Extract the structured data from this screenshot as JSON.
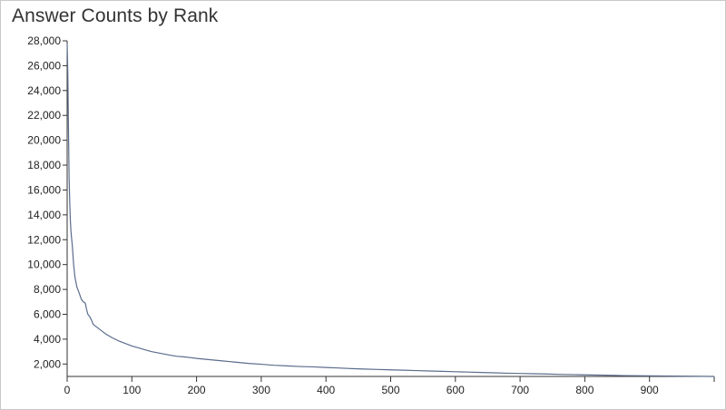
{
  "chart_data": {
    "type": "line",
    "title": "Answer Counts by Rank",
    "xlabel": "",
    "ylabel": "",
    "xlim": [
      0,
      1000
    ],
    "ylim": [
      1000,
      28000
    ],
    "x_ticks": [
      "0",
      "100",
      "200",
      "300",
      "400",
      "500",
      "600",
      "700",
      "800",
      "900"
    ],
    "y_ticks": [
      "2,000",
      "4,000",
      "6,000",
      "8,000",
      "10,000",
      "12,000",
      "14,000",
      "16,000",
      "18,000",
      "20,000",
      "22,000",
      "24,000",
      "26,000",
      "28,000"
    ],
    "grid": false,
    "line_color": "#5b6d8c",
    "series": [
      {
        "points": [
          [
            0,
            27800
          ],
          [
            1,
            25500
          ],
          [
            2,
            21000
          ],
          [
            3,
            17000
          ],
          [
            4,
            15000
          ],
          [
            5,
            13500
          ],
          [
            6,
            12600
          ],
          [
            8,
            11500
          ],
          [
            10,
            10000
          ],
          [
            12,
            9000
          ],
          [
            15,
            8200
          ],
          [
            18,
            7800
          ],
          [
            20,
            7500
          ],
          [
            22,
            7200
          ],
          [
            25,
            7000
          ],
          [
            28,
            6900
          ],
          [
            30,
            6400
          ],
          [
            32,
            6000
          ],
          [
            35,
            5800
          ],
          [
            38,
            5500
          ],
          [
            40,
            5200
          ],
          [
            45,
            5000
          ],
          [
            50,
            4800
          ],
          [
            55,
            4600
          ],
          [
            60,
            4400
          ],
          [
            70,
            4100
          ],
          [
            80,
            3850
          ],
          [
            90,
            3650
          ],
          [
            100,
            3450
          ],
          [
            110,
            3300
          ],
          [
            120,
            3150
          ],
          [
            130,
            3000
          ],
          [
            140,
            2900
          ],
          [
            150,
            2800
          ],
          [
            160,
            2700
          ],
          [
            170,
            2620
          ],
          [
            180,
            2580
          ],
          [
            190,
            2520
          ],
          [
            200,
            2450
          ],
          [
            220,
            2350
          ],
          [
            240,
            2250
          ],
          [
            260,
            2150
          ],
          [
            280,
            2050
          ],
          [
            300,
            1980
          ],
          [
            320,
            1900
          ],
          [
            340,
            1850
          ],
          [
            360,
            1800
          ],
          [
            380,
            1770
          ],
          [
            400,
            1720
          ],
          [
            420,
            1680
          ],
          [
            440,
            1630
          ],
          [
            460,
            1590
          ],
          [
            480,
            1560
          ],
          [
            500,
            1530
          ],
          [
            520,
            1500
          ],
          [
            540,
            1470
          ],
          [
            560,
            1440
          ],
          [
            580,
            1410
          ],
          [
            600,
            1380
          ],
          [
            620,
            1350
          ],
          [
            640,
            1320
          ],
          [
            660,
            1290
          ],
          [
            680,
            1260
          ],
          [
            700,
            1240
          ],
          [
            720,
            1220
          ],
          [
            740,
            1200
          ],
          [
            760,
            1170
          ],
          [
            780,
            1150
          ],
          [
            800,
            1130
          ],
          [
            820,
            1110
          ],
          [
            840,
            1090
          ],
          [
            860,
            1070
          ],
          [
            880,
            1060
          ],
          [
            900,
            1050
          ],
          [
            920,
            1040
          ],
          [
            940,
            1030
          ],
          [
            960,
            1020
          ],
          [
            980,
            1010
          ],
          [
            1000,
            1000
          ]
        ]
      }
    ]
  }
}
